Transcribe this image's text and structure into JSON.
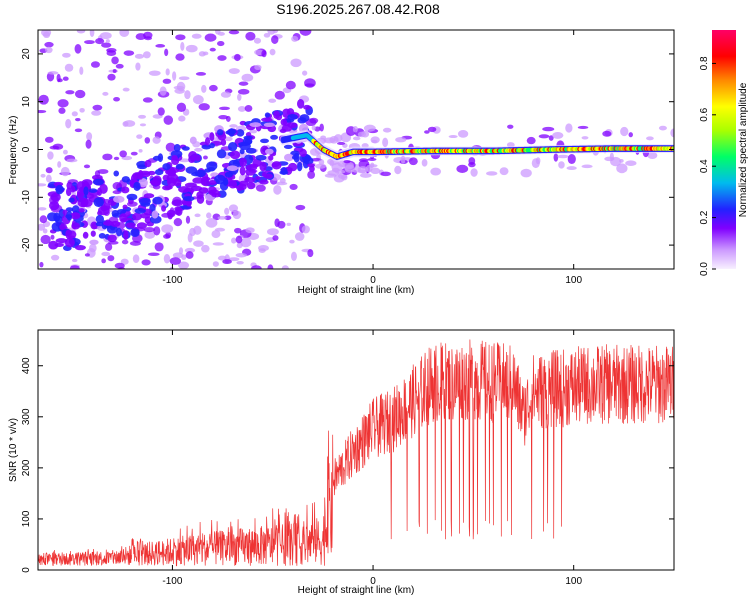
{
  "chart_data": [
    {
      "type": "heatmap",
      "title": "S196.2025.267.08.42.R08",
      "xlabel": "Height of straight line (km)",
      "ylabel": "Frequency (Hz)",
      "xlim": [
        -167,
        150
      ],
      "ylim": [
        -25,
        25
      ],
      "xticks": [
        -100,
        0,
        100
      ],
      "yticks": [
        -20,
        -10,
        0,
        10,
        20
      ],
      "colorbar": {
        "label": "Normalized spectral amplitude",
        "range": [
          0,
          0.93
        ],
        "ticks": [
          "0.0",
          "0.2",
          "0.4",
          "0.6",
          "0.8"
        ],
        "tick_values": [
          0.0,
          0.2,
          0.4,
          0.6,
          0.8
        ],
        "colormap": [
          "#f8f0ff",
          "#cc99ff",
          "#8000ff",
          "#2222ff",
          "#00bbee",
          "#00ff66",
          "#aaff00",
          "#ffff00",
          "#ff8800",
          "#ff0000",
          "#ff0066"
        ]
      },
      "ridge": {
        "description_points_km_hz": [
          [
            -150,
            -14
          ],
          [
            -120,
            -11
          ],
          [
            -100,
            -7
          ],
          [
            -80,
            -3
          ],
          [
            -60,
            -1
          ],
          [
            -45,
            2
          ],
          [
            -33,
            3
          ],
          [
            -25,
            0
          ],
          [
            -18,
            -1.5
          ],
          [
            -10,
            -0.5
          ],
          [
            0,
            -0.5
          ],
          [
            30,
            -0.3
          ],
          [
            60,
            -0.3
          ],
          [
            90,
            0
          ],
          [
            120,
            0.2
          ],
          [
            150,
            0.2
          ]
        ]
      }
    },
    {
      "type": "line",
      "xlabel": "Height of straight line (km)",
      "ylabel": "SNR (10 * v/v)",
      "xlim": [
        -167,
        150
      ],
      "ylim": [
        0,
        470
      ],
      "xticks": [
        -100,
        0,
        100
      ],
      "yticks": [
        0,
        100,
        200,
        300,
        400
      ],
      "color": "#ee3333",
      "series": [
        {
          "name": "SNR",
          "envelope_x": [
            -167,
            -130,
            -120,
            -100,
            -80,
            -60,
            -40,
            -25,
            -20,
            -10,
            0,
            10,
            20,
            30,
            40,
            50,
            60,
            70,
            75,
            80,
            90,
            100,
            110,
            120,
            130,
            140,
            150
          ],
          "envelope_y": [
            18,
            22,
            30,
            40,
            48,
            55,
            60,
            70,
            190,
            250,
            300,
            320,
            360,
            400,
            400,
            405,
            400,
            395,
            330,
            380,
            385,
            390,
            395,
            395,
            395,
            395,
            395
          ],
          "dropouts_x": [
            9,
            17,
            23,
            27,
            31,
            34,
            36,
            39,
            43,
            45,
            48,
            50,
            52,
            56,
            58,
            60,
            64,
            67,
            69,
            79,
            85,
            87,
            90,
            94
          ]
        }
      ]
    }
  ]
}
